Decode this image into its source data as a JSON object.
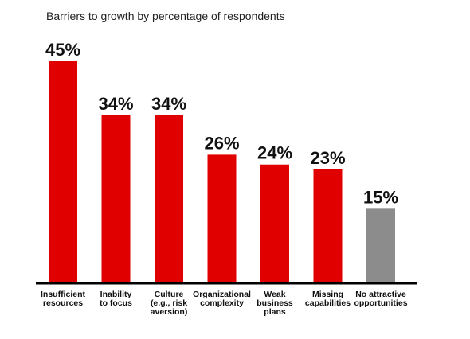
{
  "chart_data": {
    "type": "bar",
    "title": "Barriers to growth by percentage of respondents",
    "xlabel": "",
    "ylabel": "",
    "ylim": [
      0,
      45
    ],
    "grid": false,
    "legend": "none",
    "categories": [
      [
        "Insufficient",
        "resources"
      ],
      [
        "Inability",
        "to focus"
      ],
      [
        "Culture",
        "(e.g., risk",
        "aversion)"
      ],
      [
        "Organizational",
        "complexity"
      ],
      [
        "Weak",
        "business",
        "plans"
      ],
      [
        "Missing",
        "capabilities"
      ],
      [
        "No attractive",
        "opportunities"
      ]
    ],
    "values": [
      45,
      34,
      34,
      26,
      24,
      23,
      15
    ],
    "value_labels": [
      "45%",
      "34%",
      "34%",
      "26%",
      "24%",
      "23%",
      "15%"
    ],
    "colors": [
      "#e00000",
      "#e00000",
      "#e00000",
      "#e00000",
      "#e00000",
      "#e00000",
      "#8c8c8c"
    ],
    "axis_color": "#000000"
  }
}
